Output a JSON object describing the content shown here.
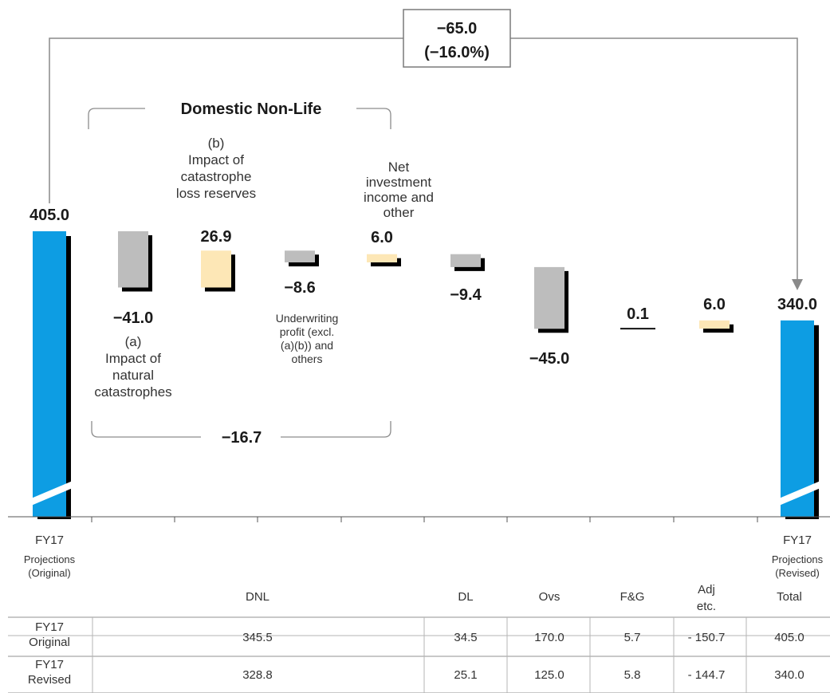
{
  "colors": {
    "total_bar": "#0d9de3",
    "negative": "#bdbdbd",
    "positive": "#fde7b6",
    "shadow": "#000000",
    "bracket": "#8c8c8c"
  },
  "total_change": {
    "value": "−65.0",
    "pct": "(−16.0%)"
  },
  "group": {
    "title": "Domestic Non-Life",
    "subtotal": "−16.7"
  },
  "step_labels": {
    "cat_reserves": [
      "(b)",
      "Impact of",
      "catastrophe",
      "loss reserves"
    ],
    "natural_cat": [
      "(a)",
      "Impact of",
      "natural",
      "catastrophes"
    ],
    "underwriting": [
      "Underwriting",
      "profit (excl.",
      "(a)(b)) and",
      "others"
    ],
    "investment": [
      "Net",
      "investment",
      "income and",
      "other"
    ]
  },
  "categories": {
    "original": [
      "FY17",
      "Projections",
      "(Original)"
    ],
    "revised": [
      "FY17",
      "Projections",
      "(Revised)"
    ]
  },
  "chart_data": {
    "type": "waterfall",
    "title": "",
    "steps": [
      {
        "id": "original",
        "kind": "total",
        "value": 405.0,
        "label": "405.0"
      },
      {
        "id": "natural_cat",
        "kind": "delta",
        "value": -41.0,
        "label": "−41.0"
      },
      {
        "id": "cat_reserves",
        "kind": "delta",
        "value": 26.9,
        "label": "26.9"
      },
      {
        "id": "underwriting",
        "kind": "delta",
        "value": -8.6,
        "label": "−8.6"
      },
      {
        "id": "investment",
        "kind": "delta",
        "value": 6.0,
        "label": "6.0"
      },
      {
        "id": "dl",
        "kind": "delta",
        "value": -9.4,
        "label": "−9.4"
      },
      {
        "id": "ovs",
        "kind": "delta",
        "value": -45.0,
        "label": "−45.0"
      },
      {
        "id": "fg",
        "kind": "delta",
        "value": 0.1,
        "label": "0.1"
      },
      {
        "id": "adj",
        "kind": "delta",
        "value": 6.0,
        "label": "6.0"
      },
      {
        "id": "revised",
        "kind": "total",
        "value": 340.0,
        "label": "340.0"
      }
    ],
    "axis_break": true
  },
  "table": {
    "headers": [
      "DNL",
      "DL",
      "Ovs",
      "F&G",
      "Adj\netc.",
      "Total"
    ],
    "rows": [
      {
        "label": [
          "FY17",
          "Original"
        ],
        "values": [
          "345.5",
          "34.5",
          "170.0",
          "5.7",
          "- 150.7",
          "405.0"
        ]
      },
      {
        "label": [
          "FY17",
          "Revised"
        ],
        "values": [
          "328.8",
          "25.1",
          "125.0",
          "5.8",
          "- 144.7",
          "340.0"
        ]
      }
    ]
  }
}
